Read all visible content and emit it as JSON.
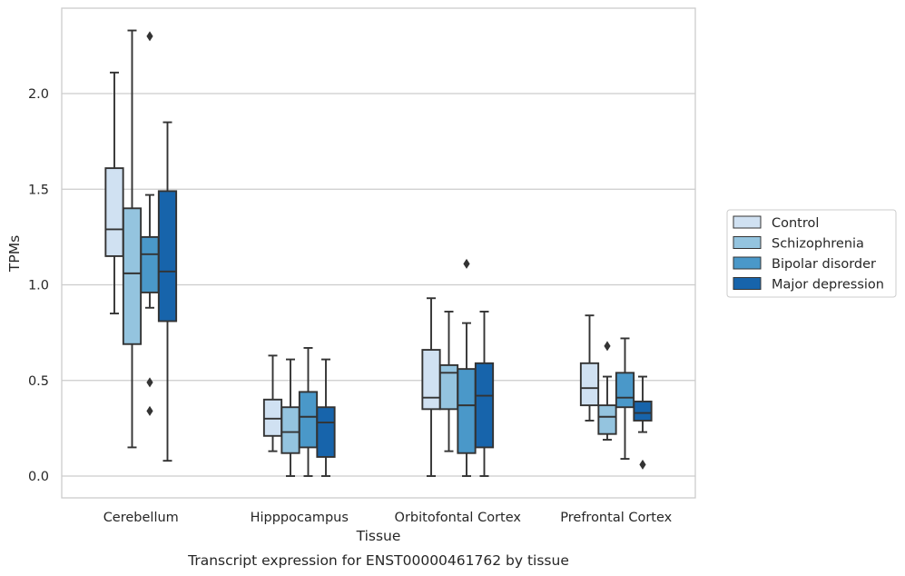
{
  "caption": "Transcript expression for ENST00000461762 by tissue",
  "colors": {
    "Control": "#d0e1f2",
    "Schizophrenia": "#94c4df",
    "Bipolar disorder": "#4a98c9",
    "Major depression": "#1764ab",
    "line": "#333333",
    "grid": "#cccccc",
    "frame": "#cccccc"
  },
  "chart_data": {
    "type": "box",
    "xlabel": "Tissue",
    "ylabel": "TPMs",
    "ylim": [
      -0.11,
      2.45
    ],
    "yticks": [
      0.0,
      0.5,
      1.0,
      1.5,
      2.0
    ],
    "ytick_labels": [
      "0.0",
      "0.5",
      "1.0",
      "1.5",
      "2.0"
    ],
    "grid": true,
    "grid_axis": "y",
    "legend_position": "outside-right",
    "categories": [
      "Cerebellum",
      "Hipppocampus",
      "Orbitofontal Cortex",
      "Prefrontal Cortex"
    ],
    "series": [
      {
        "name": "Control",
        "boxes": [
          {
            "whislo": 0.85,
            "q1": 1.15,
            "med": 1.29,
            "q3": 1.61,
            "whishi": 2.11,
            "fliers": []
          },
          {
            "whislo": 0.13,
            "q1": 0.21,
            "med": 0.3,
            "q3": 0.4,
            "whishi": 0.63,
            "fliers": []
          },
          {
            "whislo": 0.0,
            "q1": 0.35,
            "med": 0.41,
            "q3": 0.66,
            "whishi": 0.93,
            "fliers": []
          },
          {
            "whislo": 0.29,
            "q1": 0.37,
            "med": 0.46,
            "q3": 0.59,
            "whishi": 0.84,
            "fliers": []
          }
        ]
      },
      {
        "name": "Schizophrenia",
        "boxes": [
          {
            "whislo": 0.15,
            "q1": 0.69,
            "med": 1.06,
            "q3": 1.4,
            "whishi": 2.33,
            "fliers": []
          },
          {
            "whislo": 0.0,
            "q1": 0.12,
            "med": 0.23,
            "q3": 0.36,
            "whishi": 0.61,
            "fliers": []
          },
          {
            "whislo": 0.13,
            "q1": 0.35,
            "med": 0.54,
            "q3": 0.58,
            "whishi": 0.86,
            "fliers": []
          },
          {
            "whislo": 0.19,
            "q1": 0.22,
            "med": 0.31,
            "q3": 0.37,
            "whishi": 0.52,
            "fliers": [
              0.68
            ]
          }
        ]
      },
      {
        "name": "Bipolar disorder",
        "boxes": [
          {
            "whislo": 0.88,
            "q1": 0.96,
            "med": 1.16,
            "q3": 1.25,
            "whishi": 1.47,
            "fliers": [
              2.3,
              0.49,
              0.34
            ]
          },
          {
            "whislo": 0.0,
            "q1": 0.15,
            "med": 0.31,
            "q3": 0.44,
            "whishi": 0.67,
            "fliers": []
          },
          {
            "whislo": 0.0,
            "q1": 0.12,
            "med": 0.37,
            "q3": 0.56,
            "whishi": 0.8,
            "fliers": [
              1.11
            ]
          },
          {
            "whislo": 0.09,
            "q1": 0.36,
            "med": 0.41,
            "q3": 0.54,
            "whishi": 0.72,
            "fliers": []
          }
        ]
      },
      {
        "name": "Major depression",
        "boxes": [
          {
            "whislo": 0.08,
            "q1": 0.81,
            "med": 1.07,
            "q3": 1.49,
            "whishi": 1.85,
            "fliers": []
          },
          {
            "whislo": 0.0,
            "q1": 0.1,
            "med": 0.28,
            "q3": 0.36,
            "whishi": 0.61,
            "fliers": []
          },
          {
            "whislo": 0.0,
            "q1": 0.15,
            "med": 0.42,
            "q3": 0.59,
            "whishi": 0.86,
            "fliers": []
          },
          {
            "whislo": 0.23,
            "q1": 0.29,
            "med": 0.33,
            "q3": 0.39,
            "whishi": 0.52,
            "fliers": [
              0.06
            ]
          }
        ]
      }
    ]
  }
}
